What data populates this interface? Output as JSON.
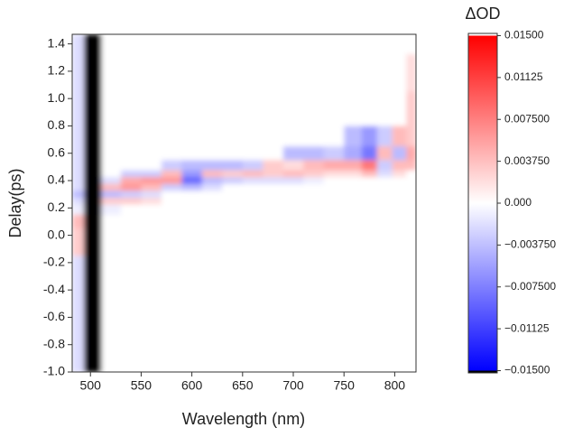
{
  "chart_data": {
    "type": "heatmap",
    "xlabel": "Wavelength (nm)",
    "ylabel": "Delay(ps)",
    "xlim": [
      482,
      821
    ],
    "ylim": [
      -1.0,
      1.47
    ],
    "xticks": [
      500,
      550,
      600,
      650,
      700,
      750,
      800
    ],
    "yticks": [
      1.4,
      1.2,
      {
        "value": 1.0,
        "label": "1.0"
      },
      0.8,
      0.6,
      0.4,
      0.2,
      {
        "value": 0.0,
        "label": "0.0"
      },
      -0.2,
      -0.4,
      -0.6,
      -0.8,
      {
        "value": -1.0,
        "label": "-1.0"
      }
    ],
    "wavelengths": [
      485,
      502,
      520,
      540,
      560,
      580,
      600,
      620,
      640,
      660,
      680,
      700,
      720,
      740,
      760,
      775,
      790,
      805,
      818
    ],
    "delays": [
      1.45,
      1.2,
      0.9,
      0.7,
      0.6,
      0.5,
      0.45,
      0.4,
      0.35,
      0.3,
      0.25,
      0.2,
      0.1,
      0.0,
      -0.3,
      -0.7,
      -0.95
    ],
    "z": [
      [
        -0.002,
        -0.016,
        0,
        0,
        0,
        0,
        0,
        0,
        0,
        0,
        0,
        0,
        0,
        0,
        0,
        0,
        0,
        0,
        0
      ],
      [
        -0.002,
        -0.016,
        0,
        0,
        0,
        0,
        0,
        0,
        0,
        0,
        0,
        0,
        0,
        0,
        0,
        0,
        0,
        0,
        0.002
      ],
      [
        -0.002,
        -0.016,
        0,
        0,
        0,
        0,
        0,
        0,
        0,
        0,
        0,
        0,
        0,
        0,
        0,
        0,
        0,
        0,
        0.003
      ],
      [
        -0.002,
        -0.016,
        0,
        0,
        0,
        0,
        0,
        0,
        0,
        0,
        0,
        0,
        0,
        0,
        -0.004,
        -0.006,
        -0.003,
        0.004,
        0.003
      ],
      [
        -0.002,
        -0.016,
        0,
        0,
        0,
        0,
        0,
        0,
        0,
        0,
        0,
        -0.004,
        -0.004,
        -0.003,
        -0.005,
        -0.008,
        0.004,
        -0.004,
        0.005
      ],
      [
        -0.002,
        -0.016,
        0,
        0,
        0,
        -0.003,
        -0.004,
        -0.004,
        -0.004,
        -0.003,
        0.003,
        0.002,
        0.004,
        0.005,
        0.005,
        0.008,
        -0.003,
        0.004,
        0.004
      ],
      [
        -0.002,
        -0.016,
        0,
        -0.003,
        -0.003,
        0.004,
        -0.006,
        0.004,
        0.003,
        0.004,
        0.003,
        0.004,
        0.003,
        0.002,
        0.002,
        0.004,
        -0.002,
        0.002,
        0
      ],
      [
        -0.002,
        -0.016,
        -0.002,
        0.005,
        0.006,
        0.006,
        -0.009,
        -0.004,
        -0.003,
        -0.002,
        -0.002,
        -0.002,
        -0.001,
        0,
        0,
        0,
        0,
        0,
        0
      ],
      [
        -0.002,
        -0.016,
        0.004,
        0.006,
        0.004,
        -0.003,
        -0.004,
        -0.002,
        0,
        0,
        0,
        0,
        0,
        0,
        0,
        0,
        0,
        0,
        0
      ],
      [
        -0.004,
        -0.016,
        -0.004,
        -0.003,
        -0.002,
        0,
        0,
        0,
        0,
        0,
        0,
        0,
        0,
        0,
        0,
        0,
        0,
        0,
        0
      ],
      [
        -0.002,
        -0.016,
        0.003,
        0.003,
        0.002,
        0,
        0,
        0,
        0,
        0,
        0,
        0,
        0,
        0,
        0,
        0,
        0,
        0,
        0
      ],
      [
        -0.001,
        -0.016,
        -0.001,
        0,
        0,
        0,
        0,
        0,
        0,
        0,
        0,
        0,
        0,
        0,
        0,
        0,
        0,
        0,
        0
      ],
      [
        0.004,
        -0.016,
        0,
        0,
        0,
        0,
        0,
        0,
        0,
        0,
        0,
        0,
        0,
        0,
        0,
        0,
        0,
        0,
        0
      ],
      [
        0.003,
        -0.016,
        0,
        0,
        0,
        0,
        0,
        0,
        0,
        0,
        0,
        0,
        0,
        0,
        0,
        0,
        0,
        0,
        0
      ],
      [
        -0.002,
        -0.016,
        0,
        0,
        0,
        0,
        0,
        0,
        0,
        0,
        0,
        0,
        0,
        0,
        0,
        0,
        0,
        0,
        0
      ],
      [
        -0.002,
        -0.016,
        0,
        0,
        0,
        0,
        0,
        0,
        0,
        0,
        0,
        0,
        0,
        0,
        0,
        0,
        0,
        0,
        0
      ],
      [
        -0.002,
        -0.016,
        0,
        0,
        0,
        0,
        0,
        0,
        0,
        0,
        0,
        0,
        0,
        0,
        0,
        0,
        0,
        0,
        0
      ]
    ],
    "colormap": [
      "#0000ff",
      "#ffffff",
      "#ff0000"
    ],
    "under_color": "#000000",
    "over_color": "#ffffff",
    "clim": [
      -0.015,
      0.015
    ],
    "colorbar": {
      "title": "ΔOD",
      "lim": [
        -0.0152,
        0.0152
      ],
      "ticks": [
        {
          "value": 0.015,
          "label": "0.01500"
        },
        {
          "value": 0.01125,
          "label": "0.01125"
        },
        {
          "value": 0.0075,
          "label": "0.007500"
        },
        {
          "value": 0.00375,
          "label": "0.003750"
        },
        {
          "value": 0,
          "label": "0.000"
        },
        {
          "value": -0.00375,
          "label": "−0.003750"
        },
        {
          "value": -0.0075,
          "label": "−0.007500"
        },
        {
          "value": -0.01125,
          "label": "−0.01125"
        },
        {
          "value": -0.015,
          "label": "−0.01500"
        }
      ]
    }
  }
}
